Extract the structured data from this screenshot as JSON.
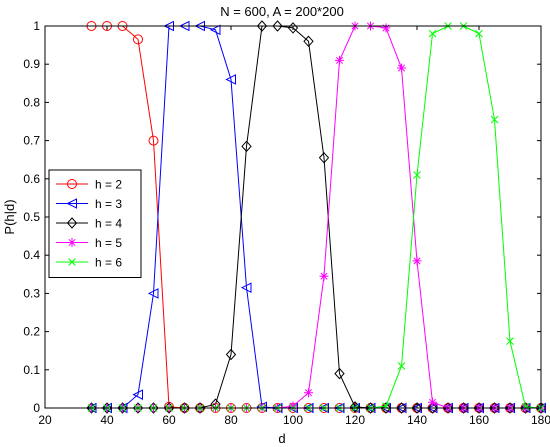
{
  "chart_data": {
    "type": "line",
    "title": "N = 600, A = 200*200",
    "xlabel": "d",
    "ylabel": "P(h|d)",
    "xlim": [
      20,
      180
    ],
    "ylim": [
      0,
      1
    ],
    "xticks": [
      20,
      40,
      60,
      80,
      100,
      120,
      140,
      160,
      180
    ],
    "yticks": [
      0,
      0.1,
      0.2,
      0.3,
      0.4,
      0.5,
      0.6,
      0.7,
      0.8,
      0.9,
      1
    ],
    "grid": false,
    "legend_position": "middle-left",
    "x": [
      35,
      40,
      45,
      50,
      55,
      60,
      65,
      70,
      75,
      80,
      85,
      90,
      95,
      100,
      105,
      110,
      115,
      120,
      125,
      130,
      135,
      140,
      145,
      150,
      155,
      160,
      165,
      170,
      175,
      180
    ],
    "series": [
      {
        "name": "h = 2",
        "color": "#ff0000",
        "marker": "circle",
        "values": [
          1,
          1,
          1,
          0.965,
          0.7,
          0.003,
          0,
          0,
          0,
          0,
          0,
          0,
          0,
          0,
          0,
          0,
          0,
          0,
          0,
          0,
          0,
          0,
          0,
          0,
          0,
          0,
          0,
          0,
          0,
          0
        ]
      },
      {
        "name": "h = 3",
        "color": "#0000ff",
        "marker": "triangle-left",
        "values": [
          0,
          0,
          0,
          0.035,
          0.3,
          1,
          1,
          1,
          0.99,
          0.86,
          0.315,
          0.003,
          0,
          0,
          0,
          0,
          0,
          0,
          0,
          0,
          0,
          0,
          0,
          0,
          0,
          0,
          0,
          0,
          0,
          0
        ]
      },
      {
        "name": "h = 4",
        "color": "#000000",
        "marker": "diamond",
        "values": [
          0,
          0,
          0,
          0,
          0,
          0,
          0,
          0,
          0.01,
          0.14,
          0.685,
          1,
          1,
          0.995,
          0.96,
          0.655,
          0.09,
          0.003,
          0,
          0,
          0,
          0,
          0,
          0,
          0,
          0,
          0,
          0,
          0,
          0
        ]
      },
      {
        "name": "h = 5",
        "color": "#ff00ff",
        "marker": "asterisk",
        "values": [
          0,
          0,
          0,
          0,
          0,
          0,
          0,
          0,
          0,
          0,
          0,
          0,
          0,
          0.005,
          0.04,
          0.345,
          0.91,
          1,
          1,
          0.995,
          0.89,
          0.385,
          0.015,
          0,
          0,
          0,
          0,
          0,
          0,
          0
        ]
      },
      {
        "name": "h = 6",
        "color": "#00ff00",
        "marker": "x",
        "values": [
          0,
          0,
          0,
          0,
          0,
          0,
          0,
          0,
          0,
          0,
          0,
          0,
          0,
          0,
          0,
          0,
          0,
          0,
          0,
          0.005,
          0.11,
          0.61,
          0.98,
          1,
          1,
          0.98,
          0.755,
          0.175,
          0.003,
          0
        ]
      }
    ]
  }
}
